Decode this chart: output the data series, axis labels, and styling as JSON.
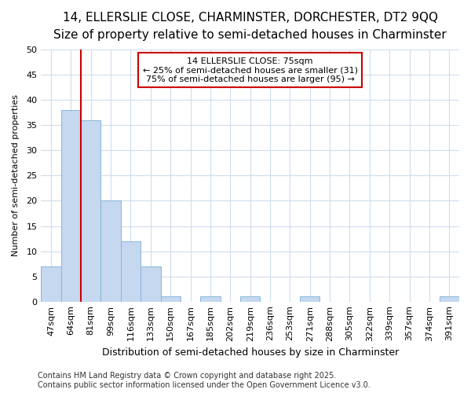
{
  "title": "14, ELLERSLIE CLOSE, CHARMINSTER, DORCHESTER, DT2 9QQ",
  "subtitle": "Size of property relative to semi-detached houses in Charminster",
  "xlabel": "Distribution of semi-detached houses by size in Charminster",
  "ylabel": "Number of semi-detached properties",
  "categories": [
    "47sqm",
    "64sqm",
    "81sqm",
    "99sqm",
    "116sqm",
    "133sqm",
    "150sqm",
    "167sqm",
    "185sqm",
    "202sqm",
    "219sqm",
    "236sqm",
    "253sqm",
    "271sqm",
    "288sqm",
    "305sqm",
    "322sqm",
    "339sqm",
    "357sqm",
    "374sqm",
    "391sqm"
  ],
  "values": [
    7,
    38,
    36,
    20,
    12,
    7,
    1,
    0,
    1,
    0,
    1,
    0,
    0,
    1,
    0,
    0,
    0,
    0,
    0,
    0,
    1
  ],
  "bar_color": "#c5d8f0",
  "bar_edge_color": "#7aafd4",
  "vline_position": 1.5,
  "vline_color": "#cc0000",
  "annotation_title": "14 ELLERSLIE CLOSE: 75sqm",
  "annotation_line1": "← 25% of semi-detached houses are smaller (31)",
  "annotation_line2": "75% of semi-detached houses are larger (95) →",
  "annotation_box_color": "#ffffff",
  "annotation_box_edge": "#cc0000",
  "ylim": [
    0,
    50
  ],
  "yticks": [
    0,
    5,
    10,
    15,
    20,
    25,
    30,
    35,
    40,
    45,
    50
  ],
  "footer": "Contains HM Land Registry data © Crown copyright and database right 2025.\nContains public sector information licensed under the Open Government Licence v3.0.",
  "background_color": "#ffffff",
  "plot_bg_color": "#ffffff",
  "grid_color": "#d0dded",
  "title_fontsize": 11,
  "subtitle_fontsize": 9,
  "xlabel_fontsize": 9,
  "ylabel_fontsize": 8,
  "tick_fontsize": 8,
  "annot_fontsize": 8,
  "footer_fontsize": 7
}
